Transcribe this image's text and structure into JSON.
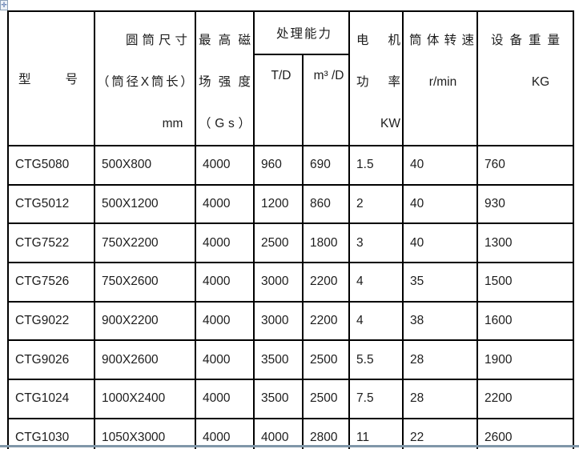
{
  "page": {
    "background": "#ffffff",
    "table_border_color": "#000000",
    "text_color": "#1d1d1d",
    "bottom_rule_color": "#7f96a8",
    "handle_icon_color": "#3c5f9e"
  },
  "handle": {
    "icon": "table-move-handle-icon",
    "glyph": "✛"
  },
  "header": {
    "model": "型号",
    "drum_size": {
      "line1": "圆筒尺寸",
      "line2": "（筒径X筒长）",
      "line3": "mm"
    },
    "field_strength": {
      "line1": "最高磁",
      "line2": "场强度",
      "line3": "（Gs）"
    },
    "capacity": {
      "title": "处理能力",
      "sub_td": "T/D",
      "sub_m3d": "m³ /D"
    },
    "motor_power": {
      "line1": "电机",
      "line2": "功率",
      "line3": "KW"
    },
    "drum_speed": {
      "line1": "筒体转速",
      "line2": "r/min"
    },
    "weight": {
      "line1": "设备重量",
      "line2": "KG"
    }
  },
  "rows": [
    {
      "model": "CTG5080",
      "size": "500X800",
      "gauss": "4000",
      "td": "960",
      "m3d": "690",
      "kw": "1.5",
      "rpm": "40",
      "kg": "760"
    },
    {
      "model": "CTG5012",
      "size": "500X1200",
      "gauss": "4000",
      "td": "1200",
      "m3d": "860",
      "kw": "2",
      "rpm": "40",
      "kg": "930"
    },
    {
      "model": "CTG7522",
      "size": "750X2200",
      "gauss": "4000",
      "td": "2500",
      "m3d": "1800",
      "kw": "3",
      "rpm": "40",
      "kg": "1300"
    },
    {
      "model": "CTG7526",
      "size": "750X2600",
      "gauss": "4000",
      "td": "3000",
      "m3d": "2200",
      "kw": "4",
      "rpm": "35",
      "kg": "1500"
    },
    {
      "model": "CTG9022",
      "size": "900X2200",
      "gauss": "4000",
      "td": "3000",
      "m3d": "2200",
      "kw": "4",
      "rpm": "38",
      "kg": "1600"
    },
    {
      "model": "CTG9026",
      "size": "900X2600",
      "gauss": "4000",
      "td": "3500",
      "m3d": "2500",
      "kw": "5.5",
      "rpm": "28",
      "kg": "1900"
    },
    {
      "model": "CTG1024",
      "size": "1000X2400",
      "gauss": "4000",
      "td": "3500",
      "m3d": "2500",
      "kw": "7.5",
      "rpm": "28",
      "kg": "2200"
    },
    {
      "model": "CTG1030",
      "size": "1050X3000",
      "gauss": "4000",
      "td": "4000",
      "m3d": "2800",
      "kw": "11",
      "rpm": "22",
      "kg": "2600"
    }
  ]
}
